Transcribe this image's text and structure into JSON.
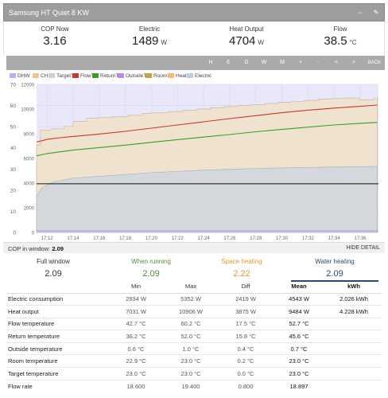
{
  "window": {
    "title": "Samsung HT Quiet 8 KW",
    "btn_a": "⇔",
    "btn_b": "✎"
  },
  "stats": {
    "cop_label": "COP Now",
    "cop_value": "3.16",
    "electric_label": "Electric",
    "electric_value": "1489",
    "electric_unit": "W",
    "heat_label": "Heat Output",
    "heat_value": "4704",
    "heat_unit": "W",
    "flow_label": "Flow",
    "flow_value": "38.5",
    "flow_unit": "°C"
  },
  "toolbar": {
    "buttons": [
      "H",
      "6",
      "D",
      "W",
      "M",
      "+",
      "-",
      "<",
      ">",
      "BACK"
    ]
  },
  "chart_data": {
    "type": "area",
    "legend": [
      "DHW",
      "CH",
      "TargetT",
      "FlowT",
      "ReturnT",
      "OutsideT",
      "RoomT",
      "Heat",
      "Electric"
    ],
    "legend_colors": [
      "#a9b8f0",
      "#f1c58a",
      "#cfcfcf",
      "#c3392b",
      "#3e9a2b",
      "#b58ce6",
      "#c6a24b",
      "#f5b979",
      "#b9cfe8"
    ],
    "x_ticks": [
      "17:12",
      "17:14",
      "17:16",
      "17:18",
      "17:20",
      "17:22",
      "17:24",
      "17:26",
      "17:28",
      "17:30",
      "17:32",
      "17:34",
      "17:36"
    ],
    "y_left_ticks": [
      "0",
      "10",
      "20",
      "30",
      "40",
      "50",
      "60",
      "70"
    ],
    "y_right_ticks": [
      "0",
      "2000",
      "4000",
      "6000",
      "8000",
      "10000",
      "12000"
    ],
    "y_left_range": [
      0,
      70
    ],
    "y_right_range": [
      0,
      12000
    ],
    "x_range": [
      11.2,
      37.4
    ],
    "heat_output_W": [
      [
        11.2,
        7100
      ],
      [
        11.5,
        8300
      ],
      [
        12.3,
        8400
      ],
      [
        13.3,
        8600
      ],
      [
        14.0,
        9000
      ],
      [
        15.0,
        9250
      ],
      [
        15.9,
        9300
      ],
      [
        17.0,
        9400
      ],
      [
        18.2,
        9500
      ],
      [
        19.3,
        9650
      ],
      [
        20.0,
        9700
      ],
      [
        21.3,
        9800
      ],
      [
        22.4,
        9900
      ],
      [
        23.5,
        10000
      ],
      [
        24.5,
        10100
      ],
      [
        25.6,
        10200
      ],
      [
        26.6,
        10300
      ],
      [
        27.6,
        10350
      ],
      [
        28.7,
        10450
      ],
      [
        29.7,
        10550
      ],
      [
        30.7,
        10600
      ],
      [
        31.7,
        10700
      ],
      [
        32.8,
        10800
      ],
      [
        33.8,
        10850
      ],
      [
        34.9,
        10900
      ],
      [
        35.9,
        10750
      ],
      [
        37.0,
        10850
      ],
      [
        37.3,
        11000
      ]
    ],
    "electric_W": [
      [
        11.2,
        2900
      ],
      [
        11.6,
        3600
      ],
      [
        12.5,
        4100
      ],
      [
        14.0,
        4400
      ],
      [
        16.0,
        4550
      ],
      [
        18.0,
        4700
      ],
      [
        20.0,
        4850
      ],
      [
        22.0,
        4950
      ],
      [
        24.0,
        5050
      ],
      [
        26.0,
        5120
      ],
      [
        28.0,
        5180
      ],
      [
        30.0,
        5230
      ],
      [
        32.0,
        5270
      ],
      [
        34.0,
        5300
      ],
      [
        36.0,
        5330
      ],
      [
        37.3,
        5350
      ]
    ],
    "flow_temp_C": [
      [
        11.2,
        42.7
      ],
      [
        12.0,
        44.0
      ],
      [
        13.0,
        44.8
      ],
      [
        14.0,
        45.4
      ],
      [
        16.0,
        46.5
      ],
      [
        18.0,
        47.8
      ],
      [
        20.0,
        49.3
      ],
      [
        22.0,
        50.8
      ],
      [
        24.0,
        52.3
      ],
      [
        26.0,
        53.8
      ],
      [
        28.0,
        55.2
      ],
      [
        30.0,
        56.6
      ],
      [
        32.0,
        57.8
      ],
      [
        34.0,
        58.8
      ],
      [
        36.0,
        59.6
      ],
      [
        37.3,
        60.2
      ]
    ],
    "return_temp_C": [
      [
        11.2,
        36.2
      ],
      [
        12.0,
        37.3
      ],
      [
        14.0,
        38.9
      ],
      [
        16.0,
        40.1
      ],
      [
        18.0,
        41.3
      ],
      [
        20.0,
        42.6
      ],
      [
        22.0,
        43.9
      ],
      [
        24.0,
        45.1
      ],
      [
        26.0,
        46.3
      ],
      [
        28.0,
        47.6
      ],
      [
        30.0,
        48.7
      ],
      [
        32.0,
        49.8
      ],
      [
        34.0,
        50.8
      ],
      [
        36.0,
        51.6
      ],
      [
        37.3,
        52.0
      ]
    ],
    "target_temp_C": 23.0
  },
  "cop_window": {
    "label": "COP in window:",
    "value": "2.09",
    "hide_label": "HIDE DETAIL"
  },
  "tabs": [
    {
      "label": "Full window",
      "value": "2.09",
      "color": "#333333"
    },
    {
      "label": "When running",
      "value": "2.09",
      "color": "#5a8a3a"
    },
    {
      "label": "Space heating",
      "value": "2.22",
      "color": "#e49a2a"
    },
    {
      "label": "Water heating",
      "value": "2.09",
      "color": "#2b4a6a"
    }
  ],
  "table": {
    "headers": [
      "",
      "Min",
      "Max",
      "Diff",
      "Mean",
      "kWh"
    ],
    "rows": [
      [
        "Electric consumption",
        "2934 W",
        "5352 W",
        "2419 W",
        "4543 W",
        "2.026 kWh"
      ],
      [
        "Heat output",
        "7031 W",
        "10906 W",
        "3875 W",
        "9484 W",
        "4.228 kWh"
      ],
      [
        "Flow temperature",
        "42.7 °C",
        "60.2 °C",
        "17.5 °C",
        "52.7 °C",
        ""
      ],
      [
        "Return temperature",
        "36.2 °C",
        "52.0 °C",
        "15.8 °C",
        "45.6 °C",
        ""
      ],
      [
        "Outside temperature",
        "0.6 °C",
        "1.0 °C",
        "0.4 °C",
        "0.7 °C",
        ""
      ],
      [
        "Room temperature",
        "22.9 °C",
        "23.0 °C",
        "0.2 °C",
        "23.0 °C",
        ""
      ],
      [
        "Target temperature",
        "23.0 °C",
        "23.0 °C",
        "0.0 °C",
        "23.0 °C",
        ""
      ],
      [
        "Flow rate",
        "18.600",
        "19.400",
        "0.800",
        "18.897",
        ""
      ]
    ]
  }
}
